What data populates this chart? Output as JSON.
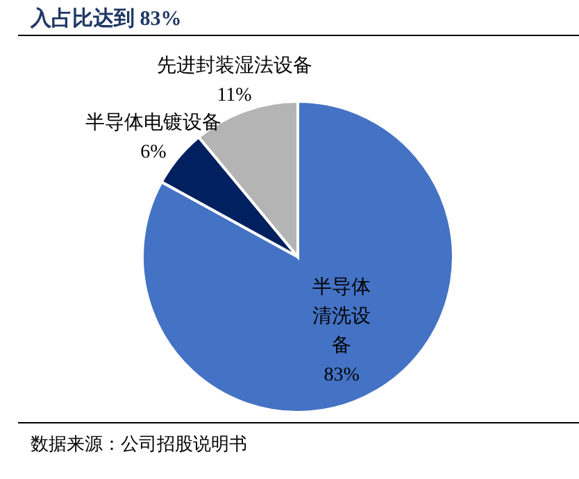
{
  "chart_data": {
    "type": "pie",
    "title": "入占比达到 83%",
    "categories": [
      "半导体清洗设备",
      "半导体电镀设备",
      "先进封装湿法设备"
    ],
    "values": [
      83,
      6,
      11
    ],
    "value_labels": [
      "83%",
      "6%",
      "11%"
    ],
    "colors": [
      "#4472c4",
      "#002060",
      "#b4b4b4"
    ],
    "annotations": [
      "数据来源：公司招股说明书"
    ]
  }
}
